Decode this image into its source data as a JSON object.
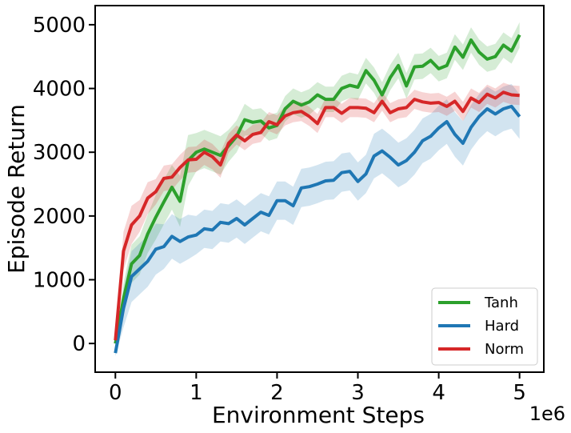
{
  "chart_data": {
    "type": "line",
    "title": "",
    "xlabel": "Environment Steps",
    "ylabel": "Episode Return",
    "x_offset_text": "1e6",
    "xlim": [
      -0.25,
      5.3
    ],
    "ylim": [
      -450,
      5300
    ],
    "xticks": [
      0,
      1,
      2,
      3,
      4,
      5
    ],
    "xtick_labels": [
      "0",
      "1",
      "2",
      "3",
      "4",
      "5"
    ],
    "yticks": [
      0,
      1000,
      2000,
      3000,
      4000,
      5000
    ],
    "ytick_labels": [
      "0",
      "1000",
      "2000",
      "3000",
      "4000",
      "5000"
    ],
    "grid": false,
    "legend_position": "bottom-right",
    "x": [
      0,
      0.1,
      0.2,
      0.3,
      0.4,
      0.5,
      0.6,
      0.7,
      0.8,
      0.9,
      1.0,
      1.1,
      1.2,
      1.3,
      1.4,
      1.5,
      1.6,
      1.7,
      1.8,
      1.9,
      2.0,
      2.1,
      2.2,
      2.3,
      2.4,
      2.5,
      2.6,
      2.7,
      2.8,
      2.9,
      3.0,
      3.1,
      3.2,
      3.3,
      3.4,
      3.5,
      3.6,
      3.7,
      3.8,
      3.9,
      4.0,
      4.1,
      4.2,
      4.3,
      4.4,
      4.5,
      4.6,
      4.7,
      4.8,
      4.9,
      5.0
    ],
    "series": [
      {
        "name": "Tanh",
        "color": "#2ca02c",
        "values": [
          0,
          700,
          1250,
          1380,
          1720,
          1980,
          2220,
          2450,
          2230,
          2870,
          3000,
          3050,
          3000,
          2950,
          3100,
          3250,
          3510,
          3470,
          3490,
          3380,
          3420,
          3680,
          3800,
          3740,
          3790,
          3900,
          3830,
          3830,
          4000,
          4050,
          4020,
          4280,
          4130,
          3900,
          4170,
          4360,
          4040,
          4340,
          4350,
          4440,
          4310,
          4360,
          4650,
          4490,
          4760,
          4570,
          4460,
          4500,
          4680,
          4590,
          4840
        ],
        "spread": [
          50,
          250,
          300,
          300,
          300,
          350,
          350,
          350,
          400,
          400,
          300,
          300,
          300,
          300,
          250,
          250,
          250,
          200,
          200,
          200,
          200,
          200,
          200,
          200,
          200,
          200,
          200,
          200,
          200,
          200,
          200,
          200,
          200,
          200,
          200,
          200,
          200,
          200,
          200,
          200,
          200,
          200,
          200,
          200,
          200,
          200,
          200,
          200,
          200,
          200,
          200
        ]
      },
      {
        "name": "Hard",
        "color": "#1f77b4",
        "values": [
          -150,
          550,
          1050,
          1170,
          1290,
          1480,
          1520,
          1680,
          1600,
          1670,
          1700,
          1800,
          1780,
          1900,
          1880,
          1960,
          1860,
          1960,
          2060,
          2010,
          2240,
          2240,
          2160,
          2440,
          2460,
          2500,
          2550,
          2560,
          2680,
          2700,
          2540,
          2660,
          2940,
          3020,
          2920,
          2800,
          2870,
          3000,
          3180,
          3250,
          3380,
          3480,
          3280,
          3140,
          3390,
          3560,
          3680,
          3600,
          3680,
          3720,
          3560
        ],
        "spread": [
          50,
          300,
          400,
          400,
          400,
          400,
          350,
          350,
          350,
          350,
          300,
          300,
          300,
          300,
          300,
          300,
          300,
          300,
          300,
          300,
          300,
          300,
          300,
          300,
          300,
          300,
          300,
          300,
          300,
          300,
          300,
          300,
          350,
          350,
          350,
          350,
          350,
          350,
          350,
          350,
          350,
          350,
          350,
          350,
          350,
          350,
          350,
          350,
          350,
          350,
          350
        ]
      },
      {
        "name": "Norm",
        "color": "#d62728",
        "values": [
          50,
          1450,
          1860,
          2000,
          2280,
          2380,
          2590,
          2610,
          2760,
          2880,
          2890,
          3000,
          2930,
          2800,
          3140,
          3270,
          3180,
          3280,
          3310,
          3480,
          3430,
          3570,
          3620,
          3640,
          3560,
          3450,
          3700,
          3700,
          3610,
          3700,
          3700,
          3690,
          3620,
          3800,
          3620,
          3680,
          3700,
          3830,
          3790,
          3770,
          3780,
          3720,
          3800,
          3640,
          3850,
          3780,
          3910,
          3850,
          3940,
          3900,
          3890
        ],
        "spread": [
          50,
          300,
          300,
          250,
          250,
          200,
          200,
          200,
          200,
          200,
          200,
          200,
          200,
          200,
          150,
          150,
          150,
          150,
          150,
          150,
          150,
          150,
          150,
          150,
          150,
          150,
          150,
          150,
          150,
          150,
          150,
          150,
          150,
          150,
          150,
          150,
          150,
          150,
          150,
          150,
          150,
          150,
          150,
          150,
          150,
          150,
          150,
          150,
          150,
          150,
          150
        ]
      }
    ]
  }
}
